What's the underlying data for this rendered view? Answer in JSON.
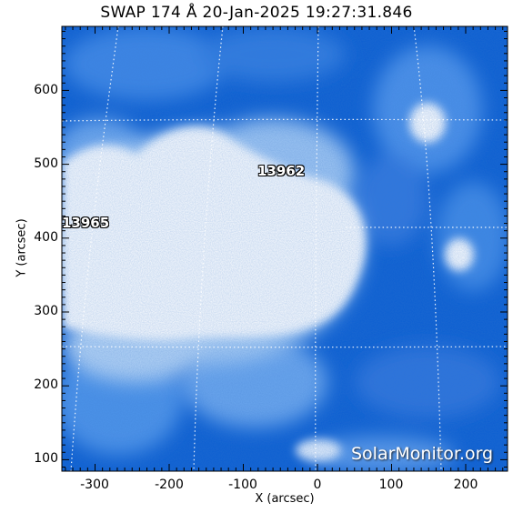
{
  "title": "SWAP 174 Å 20-Jan-2025 19:27:31.846",
  "xlabel": "X (arcsec)",
  "ylabel": "Y (arcsec)",
  "xticks": [
    "-300",
    "-200",
    "-100",
    "0",
    "100",
    "200"
  ],
  "yticks": [
    "100",
    "200",
    "300",
    "400",
    "500",
    "600"
  ],
  "active_regions": [
    {
      "label": "13962"
    },
    {
      "label": "13965"
    }
  ],
  "watermark": "SolarMonitor.org",
  "colors": {
    "image_dark": "#0050c8",
    "image_mid": "#3d86e6",
    "image_light": "#a8ccf4",
    "saturated": "#ffffff",
    "grid": "#ffffff"
  }
}
